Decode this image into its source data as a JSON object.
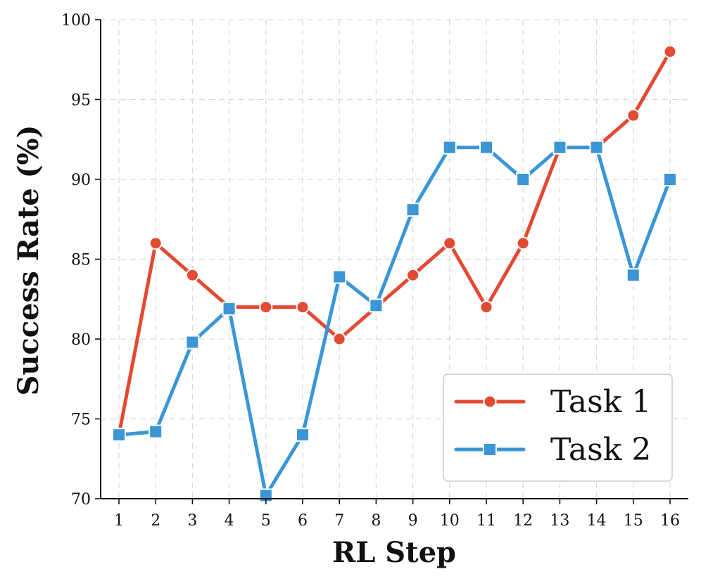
{
  "chart_data": {
    "type": "line",
    "xlabel": "RL Step",
    "ylabel": "Success Rate (%)",
    "x": [
      1,
      2,
      3,
      4,
      5,
      6,
      7,
      8,
      9,
      10,
      11,
      12,
      13,
      14,
      15,
      16
    ],
    "ylim": [
      70,
      100
    ],
    "yticks": [
      70,
      75,
      80,
      85,
      90,
      95,
      100
    ],
    "grid": true,
    "legend_position": "bottom-right",
    "series": [
      {
        "name": "Task 1",
        "marker": "circle",
        "color": "#e34a33",
        "values": [
          74,
          86,
          84,
          82,
          82,
          82,
          80,
          82,
          84,
          86,
          82,
          86,
          92,
          92,
          94,
          98
        ]
      },
      {
        "name": "Task 2",
        "marker": "square",
        "color": "#3a96d6",
        "values": [
          74,
          74.2,
          79.8,
          81.9,
          70.2,
          74,
          83.9,
          82.1,
          88.1,
          92,
          92,
          90,
          92,
          92,
          84,
          90
        ]
      }
    ]
  }
}
